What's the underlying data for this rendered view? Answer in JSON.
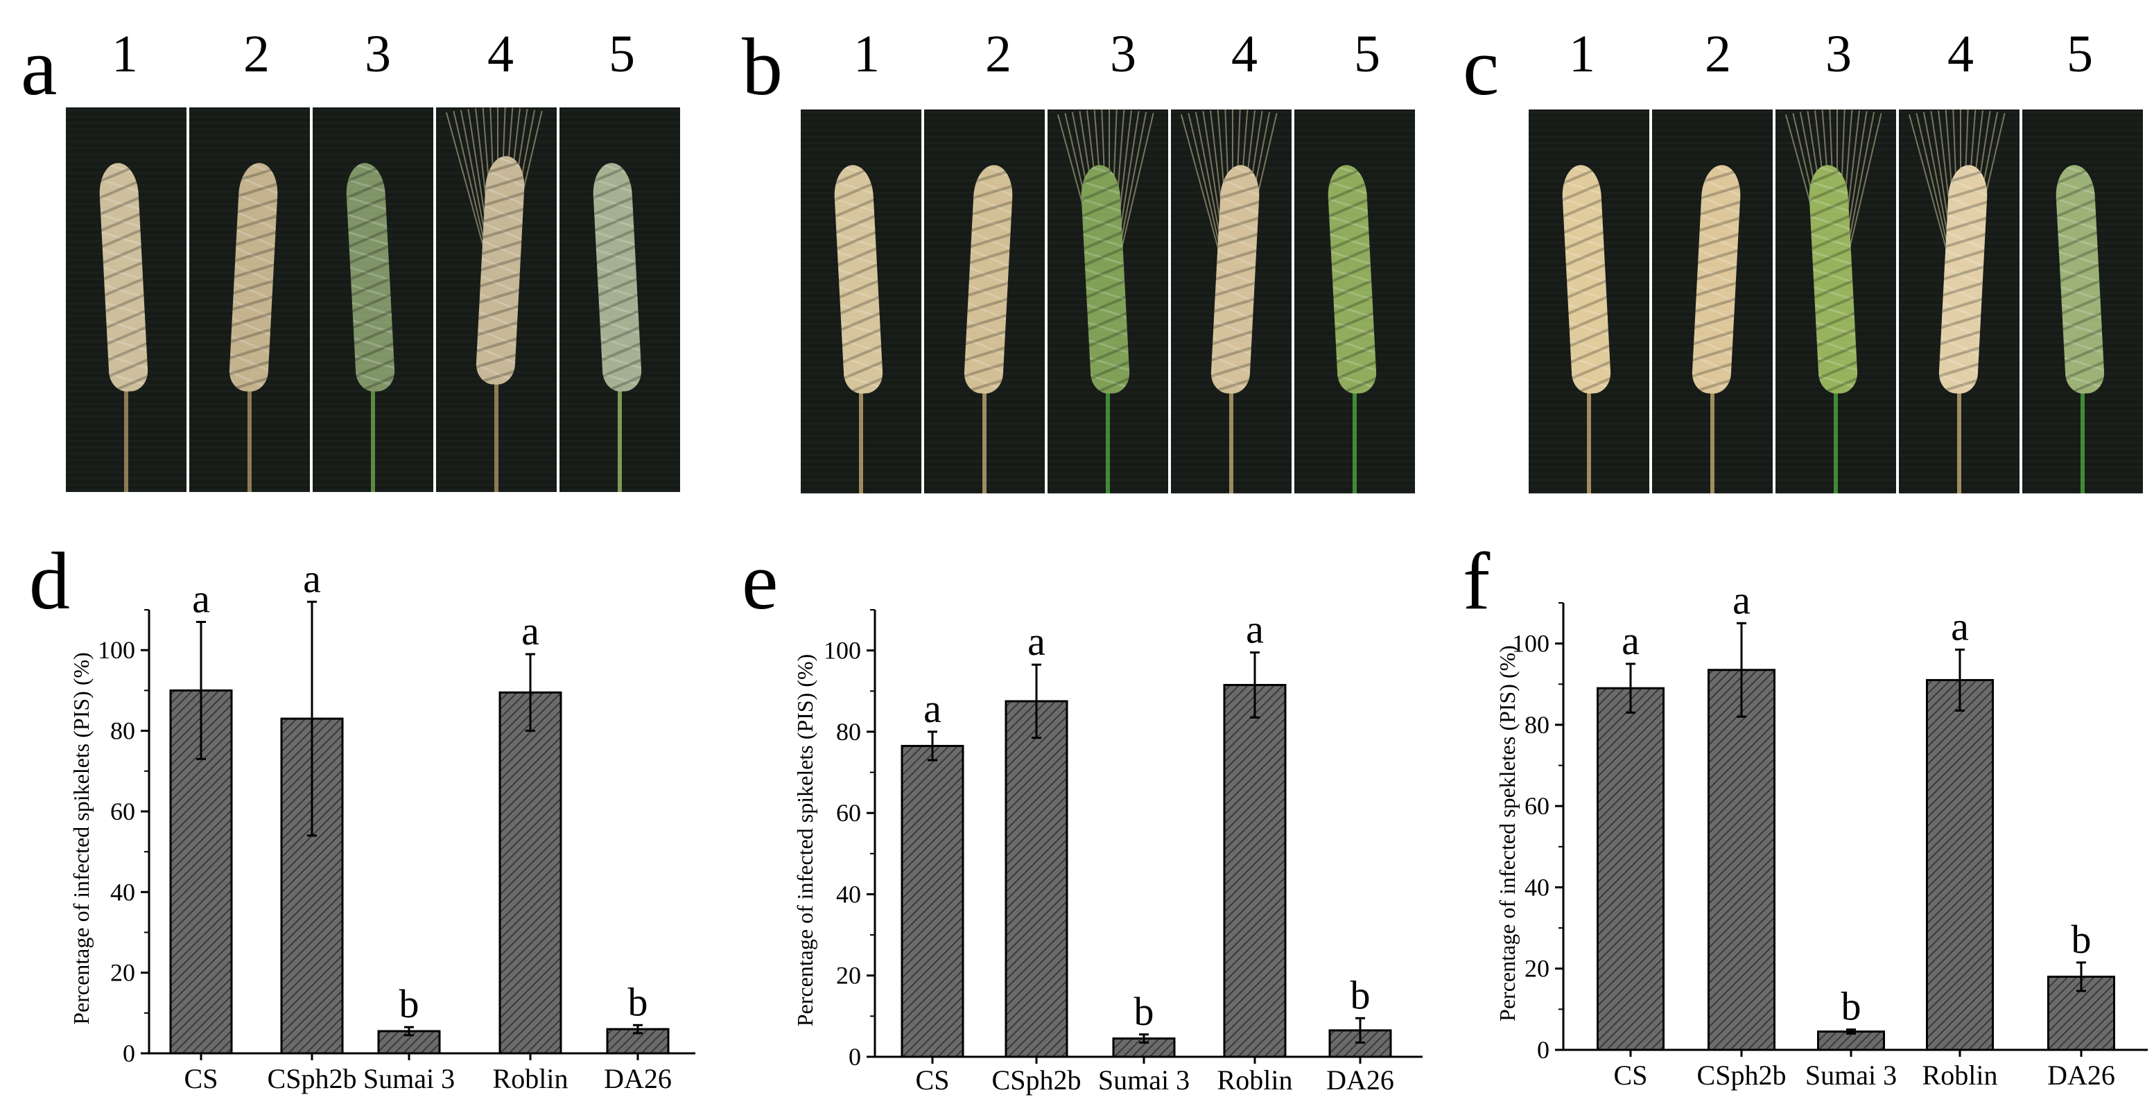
{
  "photos": [
    {
      "panel": "a",
      "spike_numbers": [
        "1",
        "2",
        "3",
        "4",
        "5"
      ],
      "spikes": [
        {
          "color": "#cdbf9c",
          "stem": "#8c7a55"
        },
        {
          "color": "#c4b28d",
          "stem": "#8c7a55"
        },
        {
          "color": "#7f9466",
          "stem": "#5d8a3e"
        },
        {
          "color": "#c6b796",
          "stem": "#8c7a55",
          "awns": true
        },
        {
          "color": "#a4b091",
          "stem": "#7d9a58"
        }
      ]
    },
    {
      "panel": "b",
      "spike_numbers": [
        "1",
        "2",
        "3",
        "4",
        "5"
      ],
      "spikes": [
        {
          "color": "#d6c59c",
          "stem": "#9d8b5e"
        },
        {
          "color": "#d2bf95",
          "stem": "#9d8b5e"
        },
        {
          "color": "#7fa056",
          "stem": "#3f8a34",
          "awns": true
        },
        {
          "color": "#d4c09a",
          "stem": "#9d8b5e",
          "awns": true
        },
        {
          "color": "#8fab5c",
          "stem": "#3f8a34"
        }
      ]
    },
    {
      "panel": "c",
      "spike_numbers": [
        "1",
        "2",
        "3",
        "4",
        "5"
      ],
      "spikes": [
        {
          "color": "#e0cb9c",
          "stem": "#a08c5c"
        },
        {
          "color": "#ddc79a",
          "stem": "#a08c5c"
        },
        {
          "color": "#96b25c",
          "stem": "#3f8a34",
          "awns": true
        },
        {
          "color": "#e2cfa8",
          "stem": "#a08c5c",
          "awns": true
        },
        {
          "color": "#9bb176",
          "stem": "#3f8a34"
        }
      ]
    }
  ],
  "chart_data": [
    {
      "panel": "d",
      "type": "bar",
      "categories": [
        "CS",
        "CSph2b",
        "Sumai 3",
        "Roblin",
        "DA26"
      ],
      "values": [
        90,
        83,
        5.5,
        89.5,
        6
      ],
      "errors": [
        17,
        29,
        1,
        9.5,
        1
      ],
      "labels": [
        "a",
        "a",
        "b",
        "a",
        "b"
      ],
      "ylabel": "Percentage of infected spikelets (PIS) (%)",
      "ylim": [
        0,
        110
      ],
      "yticks": [
        0,
        20,
        40,
        60,
        80,
        100
      ]
    },
    {
      "panel": "e",
      "type": "bar",
      "categories": [
        "CS",
        "CSph2b",
        "Sumai 3",
        "Roblin",
        "DA26"
      ],
      "values": [
        76.5,
        87.5,
        4.5,
        91.5,
        6.5
      ],
      "errors": [
        3.5,
        9,
        1,
        8,
        3
      ],
      "labels": [
        "a",
        "a",
        "b",
        "a",
        "b"
      ],
      "ylabel": "Percentage of infected spikelets (PIS) (%)",
      "ylim": [
        0,
        110
      ],
      "yticks": [
        0,
        20,
        40,
        60,
        80,
        100
      ]
    },
    {
      "panel": "f",
      "type": "bar",
      "categories": [
        "CS",
        "CSph2b",
        "Sumai 3",
        "Roblin",
        "DA26"
      ],
      "values": [
        89,
        93.5,
        4.5,
        91,
        18
      ],
      "errors": [
        6,
        11.5,
        0.5,
        7.5,
        3.5
      ],
      "labels": [
        "a",
        "a",
        "b",
        "a",
        "b"
      ],
      "ylabel": "Percentage of infected spekletes (PIS) (%)",
      "ylim": [
        0,
        110
      ],
      "yticks": [
        0,
        20,
        40,
        60,
        80,
        100
      ]
    }
  ]
}
